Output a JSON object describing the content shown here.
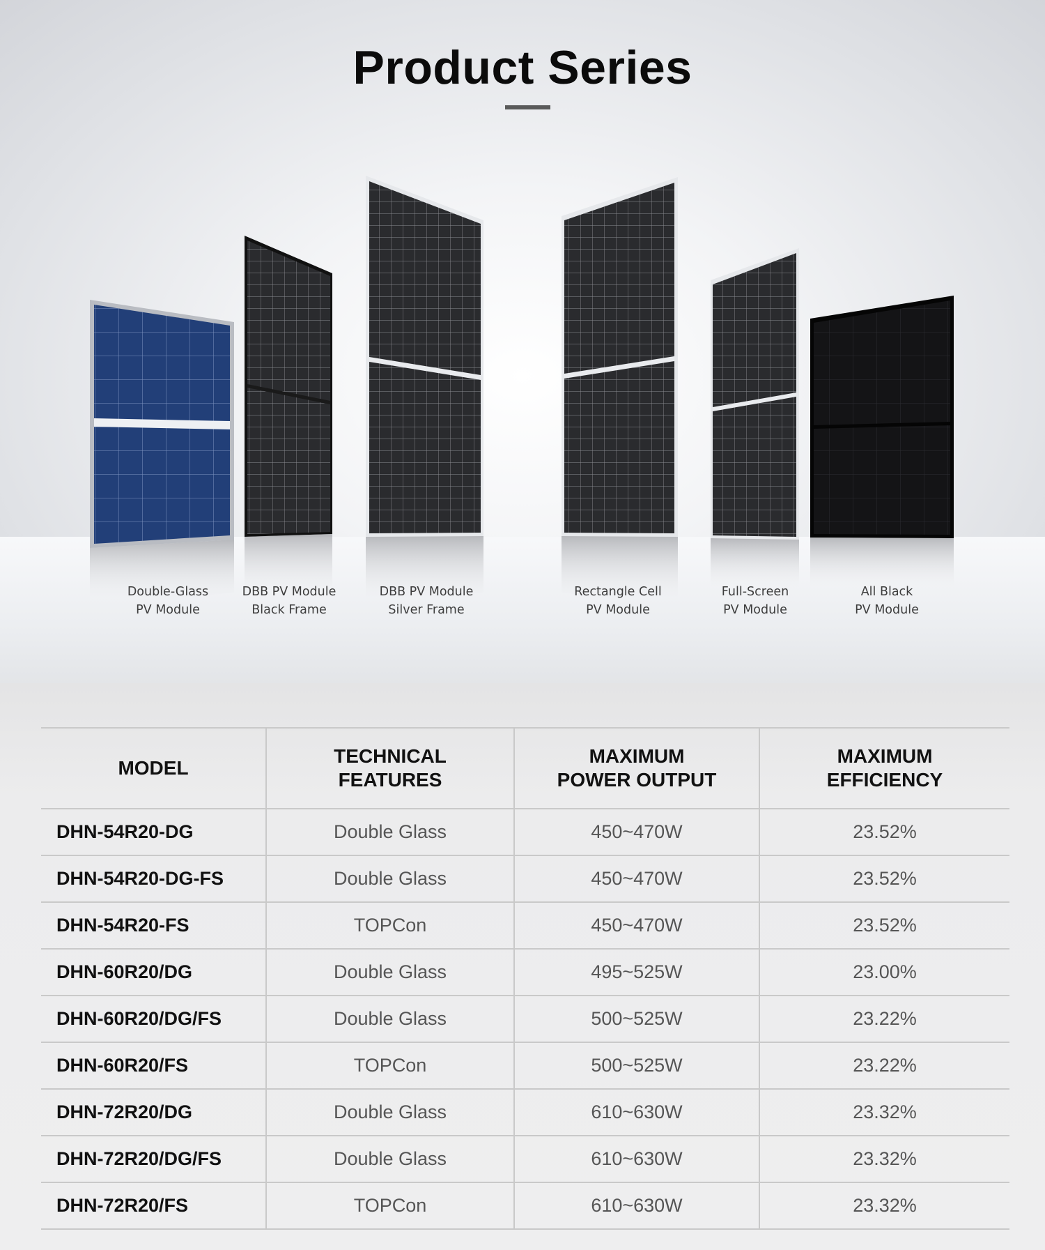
{
  "page": {
    "title": "Product Series"
  },
  "products": [
    {
      "line1": "Double-Glass",
      "line2": "PV Module"
    },
    {
      "line1": "DBB PV Module",
      "line2": "Black Frame"
    },
    {
      "line1": "DBB PV Module",
      "line2": "Silver Frame"
    },
    {
      "line1": "Rectangle Cell",
      "line2": "PV Module"
    },
    {
      "line1": "Full-Screen",
      "line2": "PV Module"
    },
    {
      "line1": "All Black",
      "line2": "PV Module"
    }
  ],
  "table": {
    "headers": {
      "model": "MODEL",
      "features_1": "TECHNICAL",
      "features_2": "FEATURES",
      "power_1": "MAXIMUM",
      "power_2": "POWER OUTPUT",
      "efficiency_1": "MAXIMUM",
      "efficiency_2": "EFFICIENCY"
    },
    "rows": [
      {
        "model": "DHN-54R20-DG",
        "feature": "Double Glass",
        "power": "450~470W",
        "efficiency": "23.52%"
      },
      {
        "model": "DHN-54R20-DG-FS",
        "feature": "Double Glass",
        "power": "450~470W",
        "efficiency": "23.52%"
      },
      {
        "model": "DHN-54R20-FS",
        "feature": "TOPCon",
        "power": "450~470W",
        "efficiency": "23.52%"
      },
      {
        "model": "DHN-60R20/DG",
        "feature": "Double Glass",
        "power": "495~525W",
        "efficiency": "23.00%"
      },
      {
        "model": "DHN-60R20/DG/FS",
        "feature": "Double Glass",
        "power": "500~525W",
        "efficiency": "23.22%"
      },
      {
        "model": "DHN-60R20/FS",
        "feature": "TOPCon",
        "power": "500~525W",
        "efficiency": "23.22%"
      },
      {
        "model": "DHN-72R20/DG",
        "feature": "Double Glass",
        "power": "610~630W",
        "efficiency": "23.32%"
      },
      {
        "model": "DHN-72R20/DG/FS",
        "feature": "Double Glass",
        "power": "610~630W",
        "efficiency": "23.32%"
      },
      {
        "model": "DHN-72R20/FS",
        "feature": "TOPCon",
        "power": "610~630W",
        "efficiency": "23.32%"
      }
    ]
  }
}
